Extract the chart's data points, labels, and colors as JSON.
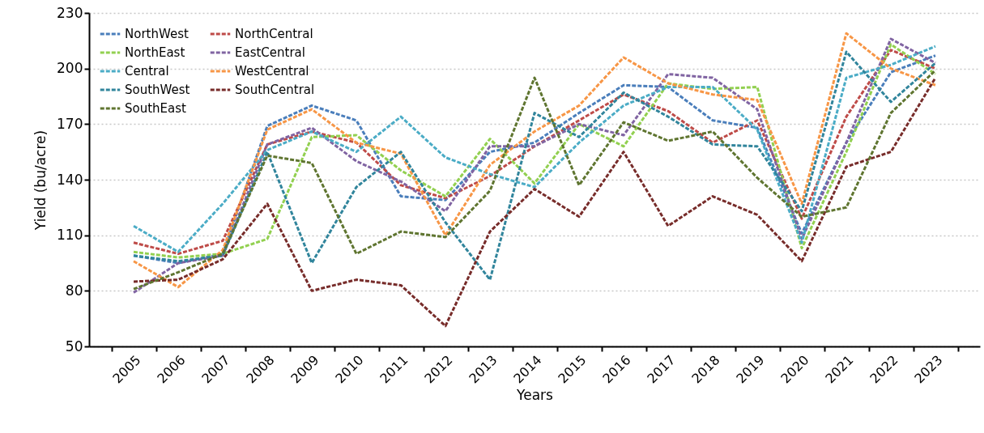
{
  "chart_data": {
    "type": "line",
    "xlabel": "Years",
    "ylabel": "Yield (bu/acre)",
    "categories": [
      "2005",
      "2006",
      "2007",
      "2008",
      "2009",
      "2010",
      "2011",
      "2012",
      "2013",
      "2014",
      "2015",
      "2016",
      "2017",
      "2018",
      "2019",
      "2020",
      "2021",
      "2022",
      "2023"
    ],
    "ylim": [
      50,
      230
    ],
    "yticks": [
      50,
      80,
      110,
      140,
      170,
      200,
      230
    ],
    "grid": "y",
    "legend": "top left",
    "line_style": "dashed",
    "marker": "none",
    "series": [
      {
        "name": "NorthWest",
        "color": "#4a7ebb",
        "values": [
          99,
          95,
          100,
          169,
          180,
          172,
          131,
          129,
          155,
          160,
          176,
          191,
          190,
          172,
          168,
          111,
          160,
          198,
          207
        ]
      },
      {
        "name": "NorthCentral",
        "color": "#be4b48",
        "values": [
          106,
          100,
          107,
          159,
          166,
          160,
          137,
          130,
          142,
          158,
          172,
          186,
          177,
          160,
          172,
          119,
          174,
          210,
          200
        ]
      },
      {
        "name": "NorthEast",
        "color": "#92d050",
        "values": [
          101,
          98,
          100,
          108,
          163,
          164,
          145,
          131,
          162,
          138,
          170,
          158,
          192,
          189,
          190,
          103,
          155,
          213,
          197
        ]
      },
      {
        "name": "EastCentral",
        "color": "#8064a2",
        "values": [
          79,
          95,
          99,
          159,
          168,
          150,
          139,
          123,
          158,
          158,
          170,
          164,
          197,
          195,
          178,
          108,
          160,
          216,
          203
        ]
      },
      {
        "name": "Central",
        "color": "#4bacc6",
        "values": [
          115,
          101,
          127,
          156,
          166,
          155,
          174,
          152,
          143,
          136,
          160,
          180,
          190,
          190,
          167,
          106,
          195,
          202,
          212
        ]
      },
      {
        "name": "WestCentral",
        "color": "#f79646",
        "values": [
          96,
          82,
          102,
          167,
          178,
          160,
          154,
          110,
          148,
          166,
          180,
          206,
          192,
          186,
          183,
          127,
          219,
          200,
          191
        ]
      },
      {
        "name": "SouthWest",
        "color": "#31859c",
        "values": [
          99,
          96,
          99,
          155,
          95,
          136,
          155,
          117,
          86,
          176,
          163,
          187,
          174,
          159,
          158,
          123,
          209,
          182,
          203
        ]
      },
      {
        "name": "SouthCentral",
        "color": "#772c2a",
        "values": [
          85,
          86,
          97,
          127,
          80,
          86,
          83,
          61,
          112,
          135,
          120,
          155,
          115,
          131,
          121,
          96,
          147,
          155,
          195
        ]
      },
      {
        "name": "SouthEast",
        "color": "#5f7530",
        "values": [
          81,
          90,
          100,
          153,
          149,
          100,
          112,
          109,
          134,
          195,
          137,
          171,
          161,
          166,
          141,
          120,
          125,
          176,
          199
        ]
      }
    ]
  }
}
